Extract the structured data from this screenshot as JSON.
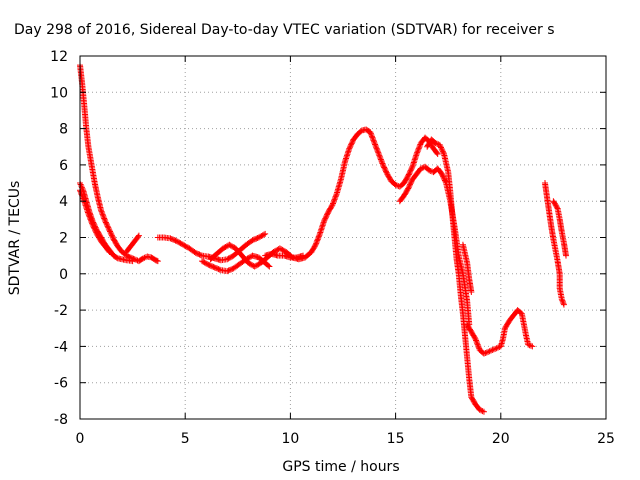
{
  "chart_data": {
    "type": "scatter",
    "title": "Day 298 of 2016, Sidereal Day-to-day VTEC variation (SDTVAR) for receiver s",
    "xlabel": "GPS time / hours",
    "ylabel": "SDTVAR / TECUs",
    "xlim": [
      0,
      25
    ],
    "ylim": [
      -8,
      12
    ],
    "xticks": [
      0,
      5,
      10,
      15,
      20,
      25
    ],
    "xtick_labels": [
      "0",
      "5",
      "10",
      "15",
      "20",
      "25"
    ],
    "yticks": [
      -8,
      -6,
      -4,
      -2,
      0,
      2,
      4,
      6,
      8,
      10,
      12
    ],
    "ytick_labels": [
      "-8",
      "-6",
      "-4",
      "-2",
      "0",
      "2",
      "4",
      "6",
      "8",
      "10",
      "12"
    ],
    "grid": true,
    "legend": "none",
    "marker": "plus",
    "color": "#ff0000",
    "series": [
      {
        "segments": [
          [
            [
              0.0,
              11.5
            ],
            [
              0.1,
              10.5
            ],
            [
              0.2,
              9.3
            ],
            [
              0.3,
              8.0
            ],
            [
              0.4,
              7.0
            ],
            [
              0.55,
              6.0
            ],
            [
              0.7,
              5.0
            ],
            [
              0.85,
              4.2
            ],
            [
              1.0,
              3.5
            ],
            [
              1.2,
              2.9
            ],
            [
              1.4,
              2.4
            ],
            [
              1.6,
              1.9
            ],
            [
              1.8,
              1.5
            ],
            [
              2.0,
              1.2
            ],
            [
              2.3,
              0.95
            ],
            [
              2.6,
              0.8
            ],
            [
              2.8,
              0.7
            ],
            [
              3.0,
              0.85
            ],
            [
              3.2,
              0.95
            ],
            [
              3.4,
              0.9
            ],
            [
              3.6,
              0.75
            ],
            [
              3.7,
              0.7
            ]
          ],
          [
            [
              0.0,
              5.0
            ],
            [
              0.15,
              4.6
            ],
            [
              0.3,
              4.0
            ],
            [
              0.45,
              3.4
            ],
            [
              0.6,
              2.9
            ],
            [
              0.8,
              2.4
            ],
            [
              1.0,
              2.0
            ],
            [
              1.2,
              1.6
            ],
            [
              1.4,
              1.3
            ],
            [
              1.6,
              1.0
            ],
            [
              1.8,
              0.85
            ],
            [
              2.0,
              0.8
            ],
            [
              2.2,
              0.75
            ],
            [
              2.5,
              0.7
            ]
          ],
          [
            [
              0.0,
              4.6
            ],
            [
              0.2,
              4.0
            ],
            [
              0.4,
              3.3
            ],
            [
              0.6,
              2.7
            ],
            [
              0.8,
              2.2
            ],
            [
              1.0,
              1.8
            ],
            [
              1.2,
              1.5
            ],
            [
              1.4,
              1.2
            ]
          ],
          [
            [
              2.2,
              1.2
            ],
            [
              2.4,
              1.5
            ],
            [
              2.6,
              1.8
            ],
            [
              2.8,
              2.1
            ]
          ],
          [
            [
              3.7,
              2.0
            ],
            [
              4.0,
              2.0
            ],
            [
              4.3,
              1.95
            ],
            [
              4.6,
              1.8
            ],
            [
              4.9,
              1.6
            ],
            [
              5.2,
              1.4
            ],
            [
              5.5,
              1.15
            ],
            [
              5.8,
              1.0
            ],
            [
              6.1,
              0.95
            ],
            [
              6.4,
              0.85
            ],
            [
              6.7,
              0.75
            ],
            [
              7.0,
              0.8
            ],
            [
              7.3,
              1.0
            ],
            [
              7.6,
              1.3
            ],
            [
              7.9,
              1.6
            ],
            [
              8.2,
              1.85
            ],
            [
              8.5,
              2.0
            ],
            [
              8.8,
              2.2
            ]
          ],
          [
            [
              5.8,
              0.7
            ],
            [
              6.1,
              0.5
            ],
            [
              6.4,
              0.35
            ],
            [
              6.7,
              0.2
            ],
            [
              7.0,
              0.15
            ],
            [
              7.3,
              0.3
            ],
            [
              7.6,
              0.55
            ],
            [
              7.9,
              0.8
            ],
            [
              8.2,
              1.0
            ],
            [
              8.5,
              0.9
            ],
            [
              8.8,
              0.6
            ],
            [
              9.0,
              0.4
            ]
          ],
          [
            [
              6.2,
              0.8
            ],
            [
              6.5,
              1.1
            ],
            [
              6.8,
              1.4
            ],
            [
              7.1,
              1.6
            ],
            [
              7.4,
              1.4
            ],
            [
              7.7,
              1.0
            ],
            [
              8.0,
              0.6
            ],
            [
              8.3,
              0.4
            ],
            [
              8.6,
              0.6
            ],
            [
              8.9,
              0.9
            ],
            [
              9.2,
              1.2
            ],
            [
              9.5,
              1.4
            ],
            [
              9.8,
              1.2
            ],
            [
              10.1,
              0.9
            ],
            [
              10.4,
              0.8
            ],
            [
              10.7,
              0.9
            ],
            [
              11.0,
              1.2
            ],
            [
              11.2,
              1.6
            ],
            [
              11.4,
              2.2
            ],
            [
              11.6,
              2.9
            ],
            [
              11.8,
              3.4
            ],
            [
              12.0,
              3.8
            ],
            [
              12.2,
              4.4
            ],
            [
              12.4,
              5.2
            ],
            [
              12.6,
              6.2
            ],
            [
              12.8,
              6.9
            ],
            [
              13.0,
              7.4
            ],
            [
              13.2,
              7.7
            ],
            [
              13.4,
              7.9
            ],
            [
              13.6,
              7.95
            ],
            [
              13.8,
              7.8
            ],
            [
              14.0,
              7.2
            ],
            [
              14.2,
              6.6
            ],
            [
              14.4,
              6.0
            ],
            [
              14.6,
              5.5
            ],
            [
              14.8,
              5.1
            ],
            [
              15.0,
              4.9
            ],
            [
              15.2,
              4.8
            ],
            [
              15.4,
              5.0
            ],
            [
              15.6,
              5.4
            ],
            [
              15.8,
              5.9
            ],
            [
              16.0,
              6.6
            ],
            [
              16.2,
              7.2
            ],
            [
              16.4,
              7.5
            ],
            [
              16.6,
              7.3
            ],
            [
              16.8,
              6.9
            ],
            [
              17.0,
              6.6
            ]
          ],
          [
            [
              8.8,
              1.0
            ],
            [
              9.1,
              1.1
            ],
            [
              9.4,
              1.0
            ],
            [
              9.7,
              1.0
            ],
            [
              10.0,
              0.9
            ],
            [
              10.3,
              0.9
            ],
            [
              10.6,
              1.0
            ]
          ],
          [
            [
              15.2,
              4.0
            ],
            [
              15.4,
              4.3
            ],
            [
              15.6,
              4.7
            ],
            [
              15.8,
              5.2
            ],
            [
              16.0,
              5.5
            ],
            [
              16.2,
              5.8
            ],
            [
              16.4,
              5.9
            ],
            [
              16.6,
              5.7
            ],
            [
              16.8,
              5.6
            ],
            [
              17.0,
              5.8
            ],
            [
              17.2,
              5.5
            ],
            [
              17.4,
              5.0
            ],
            [
              17.6,
              4.0
            ],
            [
              17.8,
              2.6
            ],
            [
              18.0,
              1.0
            ],
            [
              18.2,
              0.0
            ],
            [
              18.4,
              -1.5
            ],
            [
              18.5,
              -2.8
            ]
          ],
          [
            [
              16.5,
              7.0
            ],
            [
              16.7,
              7.4
            ],
            [
              16.9,
              7.2
            ],
            [
              17.1,
              7.1
            ],
            [
              17.3,
              6.6
            ],
            [
              17.5,
              5.6
            ],
            [
              17.6,
              4.5
            ],
            [
              17.7,
              3.2
            ],
            [
              17.8,
              2.0
            ],
            [
              17.9,
              0.8
            ],
            [
              18.0,
              0.0
            ],
            [
              18.1,
              -1.2
            ],
            [
              18.2,
              -2.2
            ],
            [
              18.3,
              -3.4
            ],
            [
              18.4,
              -4.6
            ],
            [
              18.5,
              -5.8
            ],
            [
              18.6,
              -6.8
            ],
            [
              18.8,
              -7.2
            ],
            [
              19.0,
              -7.5
            ],
            [
              19.2,
              -7.6
            ]
          ],
          [
            [
              18.2,
              1.6
            ],
            [
              18.4,
              0.6
            ],
            [
              18.5,
              -0.3
            ],
            [
              18.6,
              -1.0
            ]
          ],
          [
            [
              18.4,
              -2.8
            ],
            [
              18.6,
              -3.2
            ],
            [
              18.8,
              -3.6
            ],
            [
              19.0,
              -4.2
            ],
            [
              19.2,
              -4.4
            ],
            [
              19.4,
              -4.3
            ],
            [
              19.6,
              -4.2
            ],
            [
              19.8,
              -4.1
            ],
            [
              20.0,
              -4.0
            ],
            [
              20.1,
              -3.6
            ],
            [
              20.2,
              -3.0
            ],
            [
              20.4,
              -2.6
            ],
            [
              20.6,
              -2.3
            ],
            [
              20.8,
              -2.0
            ],
            [
              21.0,
              -2.2
            ],
            [
              21.1,
              -2.8
            ],
            [
              21.2,
              -3.4
            ],
            [
              21.3,
              -3.9
            ],
            [
              21.5,
              -4.0
            ]
          ],
          [
            [
              22.1,
              5.0
            ],
            [
              22.2,
              4.2
            ],
            [
              22.3,
              3.4
            ],
            [
              22.4,
              2.6
            ],
            [
              22.5,
              1.9
            ],
            [
              22.6,
              1.3
            ],
            [
              22.7,
              0.7
            ],
            [
              22.8,
              0.0
            ],
            [
              22.8,
              -0.8
            ],
            [
              22.9,
              -1.4
            ],
            [
              23.0,
              -1.7
            ]
          ],
          [
            [
              22.5,
              4.0
            ],
            [
              22.7,
              3.6
            ],
            [
              22.8,
              3.0
            ],
            [
              22.9,
              2.3
            ],
            [
              23.0,
              1.7
            ],
            [
              23.1,
              1.0
            ]
          ]
        ]
      }
    ]
  }
}
